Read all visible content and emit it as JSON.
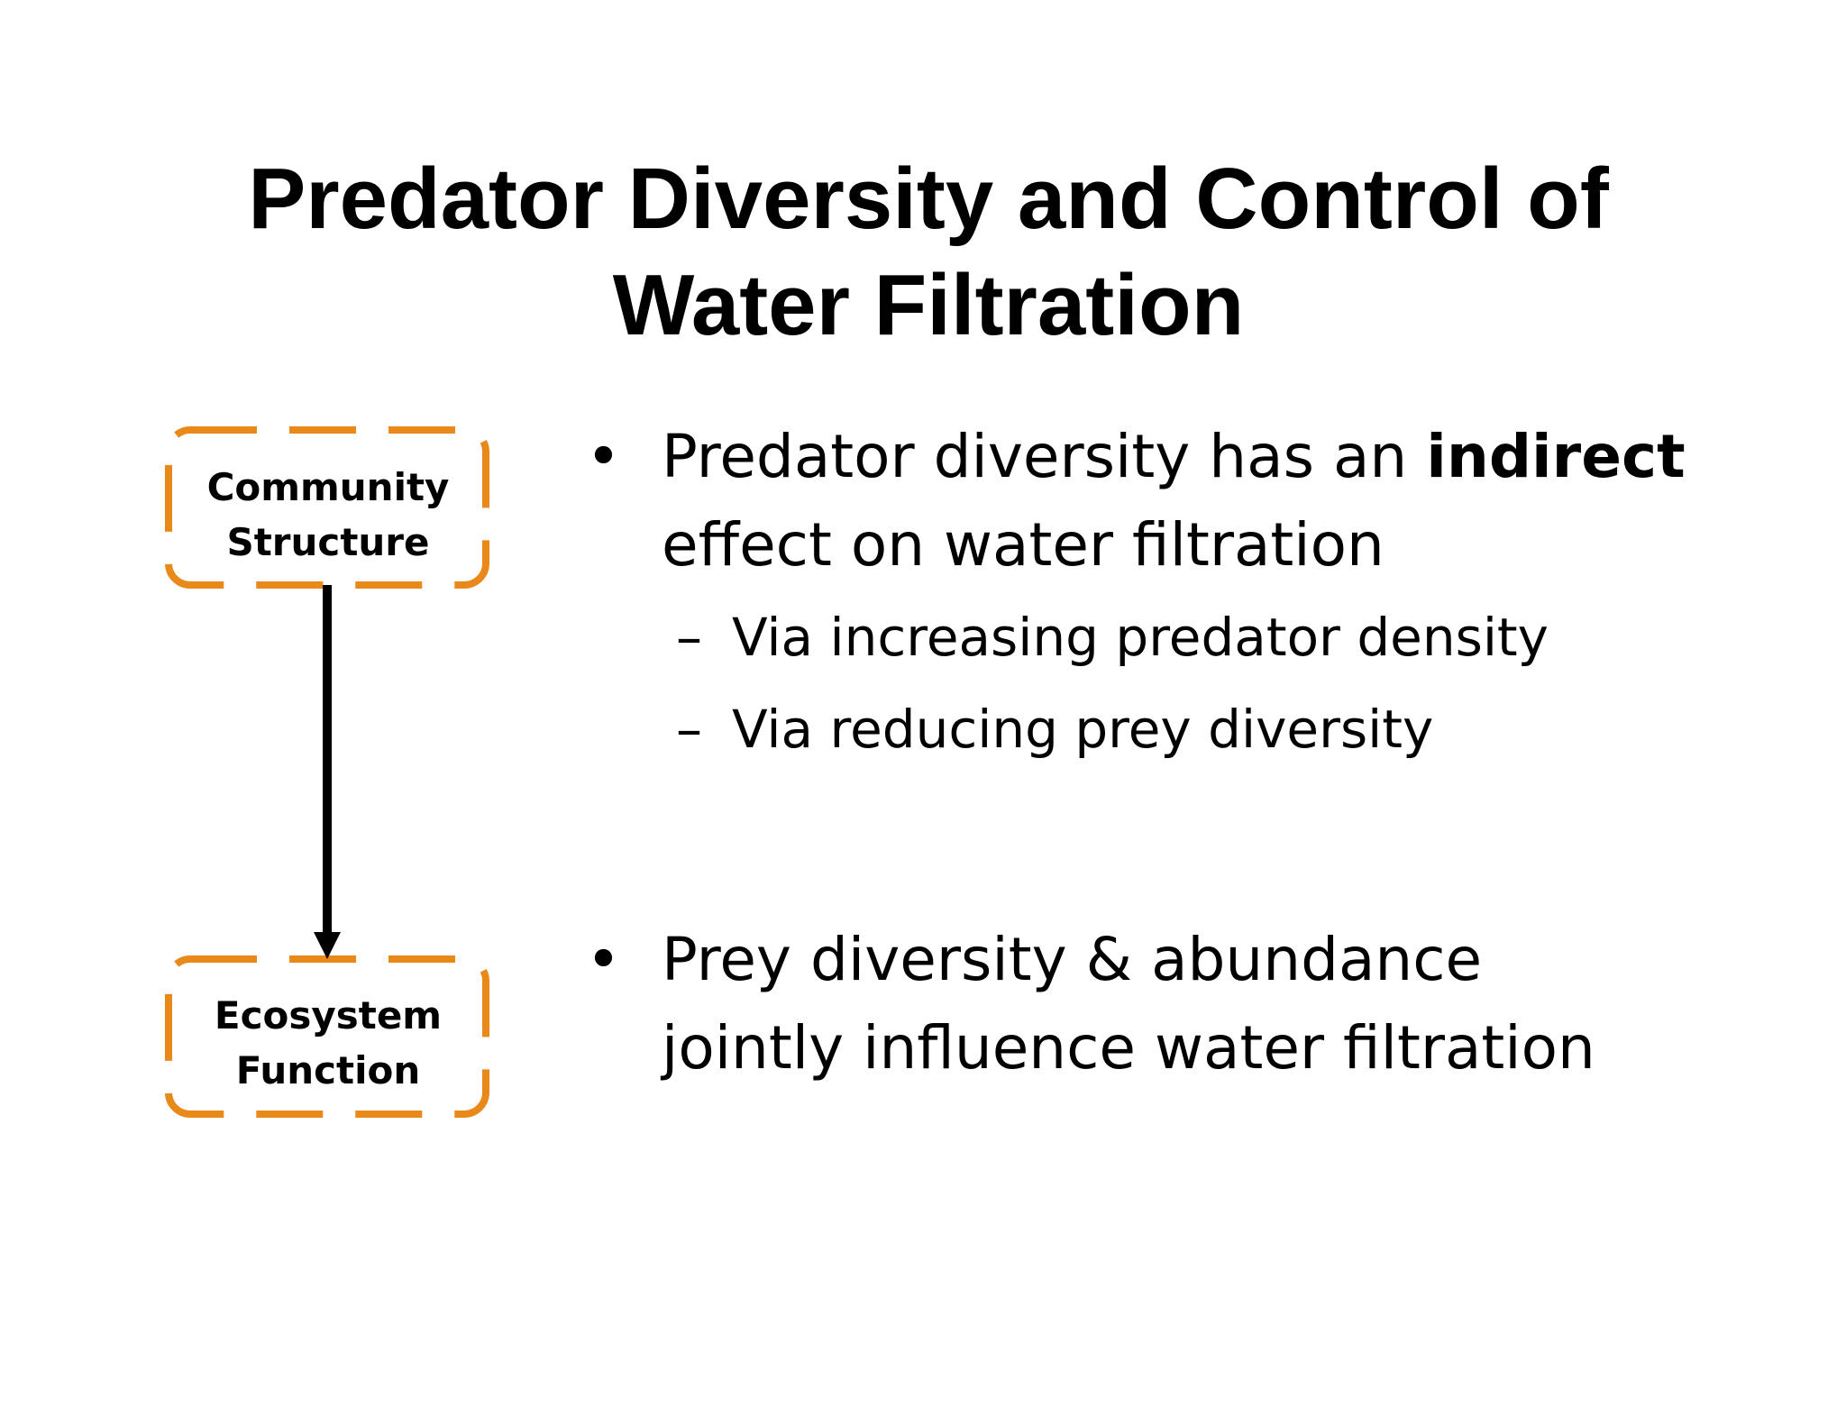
{
  "slide": {
    "title_line1": "Predator Diversity and Control of",
    "title_line2": "Water Filtration"
  },
  "diagram": {
    "accent_color": "#E8891A",
    "top_box": {
      "line1": "Community",
      "line2": "Structure"
    },
    "bottom_box": {
      "line1": "Ecosystem",
      "line2": "Function"
    },
    "arrow_color": "#000000"
  },
  "bullets": {
    "bullet_symbol": "•",
    "dash_symbol": "–",
    "first": {
      "line1_pre": "Predator diversity has an ",
      "line1_bold": "indirect",
      "line2": "effect on water filtration",
      "subs": [
        "Via increasing predator density",
        "Via reducing prey diversity"
      ]
    },
    "second": {
      "line1": "Prey diversity & abundance",
      "line2": "jointly influence water filtration"
    }
  }
}
